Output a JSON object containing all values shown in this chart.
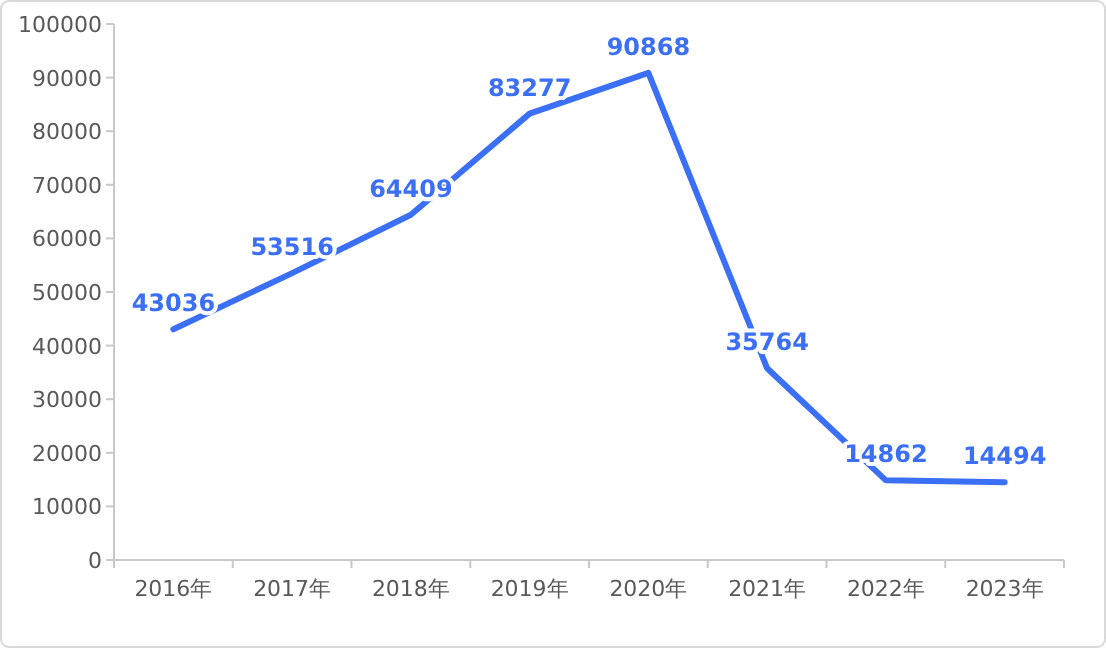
{
  "chart_data": {
    "type": "line",
    "categories": [
      "2016年",
      "2017年",
      "2018年",
      "2019年",
      "2020年",
      "2021年",
      "2022年",
      "2023年"
    ],
    "values": [
      43036,
      53516,
      64409,
      83277,
      90868,
      35764,
      14862,
      14494
    ],
    "color": "#3b6ff5",
    "ylim": [
      0,
      100000
    ],
    "yticks": [
      0,
      10000,
      20000,
      30000,
      40000,
      50000,
      60000,
      70000,
      80000,
      90000,
      100000
    ],
    "data_labels": true,
    "line_style": "solid"
  }
}
